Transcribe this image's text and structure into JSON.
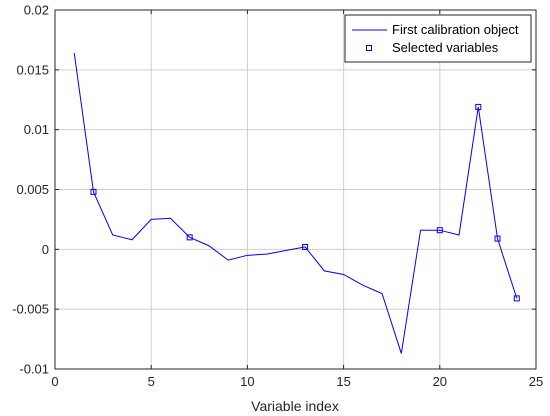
{
  "chart_data": {
    "type": "line",
    "title": "",
    "xlabel": "Variable index",
    "ylabel": "",
    "xlim": [
      0,
      25
    ],
    "ylim": [
      -0.01,
      0.02
    ],
    "xticks": [
      0,
      5,
      10,
      15,
      20,
      25
    ],
    "xtick_labels": [
      "0",
      "5",
      "10",
      "15",
      "20",
      "25"
    ],
    "yticks": [
      -0.01,
      -0.005,
      0,
      0.005,
      0.01,
      0.015,
      0.02
    ],
    "ytick_labels": [
      "-0.01",
      "-0.005",
      "0",
      "0.005",
      "0.01",
      "0.015",
      "0.02"
    ],
    "grid": true,
    "legend_position": "top-right",
    "series": [
      {
        "name": "First calibration object",
        "style": "line",
        "color": "#0000ff",
        "x": [
          1,
          2,
          3,
          4,
          5,
          6,
          7,
          8,
          9,
          10,
          11,
          12,
          13,
          14,
          15,
          16,
          17,
          18,
          19,
          20,
          21,
          22,
          23,
          24
        ],
        "y": [
          0.0164,
          0.0048,
          0.0012,
          0.0008,
          0.0025,
          0.0026,
          0.001,
          0.0003,
          -0.0009,
          -0.0005,
          -0.0004,
          -0.0001,
          0.0002,
          -0.0018,
          -0.0021,
          -0.003,
          -0.0037,
          -0.0087,
          0.0016,
          0.0016,
          0.0012,
          0.0119,
          0.0009,
          -0.0041
        ]
      },
      {
        "name": "Selected variables",
        "style": "marker",
        "color": "#0000ff",
        "x": [
          2,
          7,
          13,
          20,
          22,
          23,
          24
        ],
        "y": [
          0.0048,
          0.001,
          0.0002,
          0.0016,
          0.0119,
          0.0009,
          -0.0041
        ]
      }
    ]
  }
}
